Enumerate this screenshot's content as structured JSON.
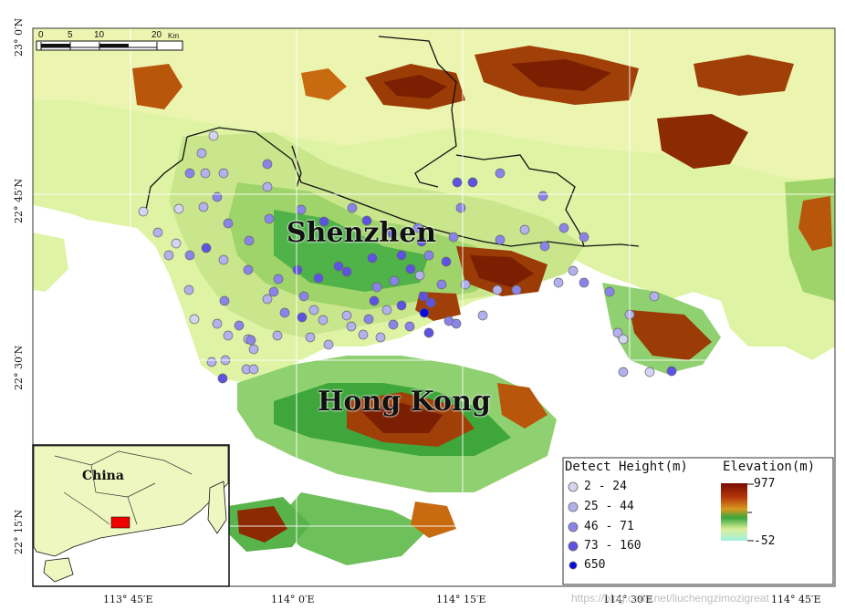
{
  "map": {
    "lon_ticks": [
      "113° 45′E",
      "114° 0′E",
      "114° 15′E",
      "114° 30′E",
      "114° 45′E"
    ],
    "lat_ticks": [
      "23° 0′N",
      "22° 45′N",
      "22° 30′N",
      "22° 15′N"
    ],
    "city_labels": {
      "shenzhen": "Shenzhen",
      "hong_kong": "Hong Kong"
    },
    "scale_bar": {
      "labels": [
        "0",
        "5",
        "10",
        "20"
      ],
      "unit": "Km"
    },
    "inset": {
      "label": "China"
    },
    "watermark": "https://blog.csdn.net/liuchengzimozigreat"
  },
  "legend": {
    "detect_title": "Detect Height(m)",
    "classes": [
      {
        "label": "2 - 24",
        "color": "#d5d3f3"
      },
      {
        "label": "25 - 44",
        "color": "#b3b0ee"
      },
      {
        "label": "46 - 71",
        "color": "#8a84ea"
      },
      {
        "label": "73 - 160",
        "color": "#5c52e4"
      },
      {
        "label": "650",
        "color": "#0a0ae0"
      }
    ],
    "elevation_title": "Elevation(m)",
    "elevation_max": "977",
    "elevation_min": "-52"
  }
}
